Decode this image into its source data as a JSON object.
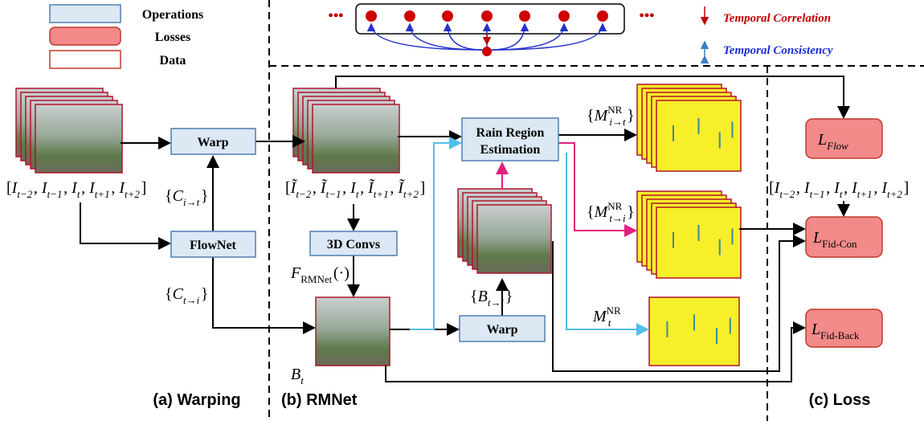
{
  "legend": {
    "operations": "Operations",
    "losses": "Losses",
    "data": "Data"
  },
  "temporal": {
    "correlation": "Temporal Correlation",
    "consistency": "Temporal Consistency",
    "ellipsis_left": "•••",
    "ellipsis_right": "•••"
  },
  "nodes": {
    "warp_a": "Warp",
    "flownet": "FlowNet",
    "convs": "3D Convs",
    "rain": [
      "Rain Region",
      "Estimation"
    ],
    "warp_b": "Warp"
  },
  "math": {
    "frames_a": [
      "[",
      "I",
      {
        "sub": "t−2"
      },
      ", ",
      "I",
      {
        "sub": "t−1"
      },
      ", ",
      "I",
      {
        "sub": "t"
      },
      ", ",
      "I",
      {
        "sub": "t+1"
      },
      ", ",
      "I",
      {
        "sub": "t+2"
      },
      "]"
    ],
    "frames_b": [
      "[",
      "Ĩ",
      {
        "sub": "t−2"
      },
      ", ",
      "Ĩ",
      {
        "sub": "t−1"
      },
      ", ",
      "I",
      {
        "sub": "t"
      },
      ", ",
      "Ĩ",
      {
        "sub": "t+1"
      },
      ", ",
      "Ĩ",
      {
        "sub": "t+2"
      },
      "]"
    ],
    "frames_c": [
      "[",
      "I",
      {
        "sub": "t−2"
      },
      ", ",
      "I",
      {
        "sub": "t−1"
      },
      ", ",
      "I",
      {
        "sub": "t"
      },
      ", ",
      "I",
      {
        "sub": "t+1"
      },
      ", ",
      "I",
      {
        "sub": "t+2"
      },
      "]"
    ],
    "flow_it": [
      "{",
      "C",
      {
        "sub": "i→t"
      },
      "}"
    ],
    "flow_ti": [
      "{",
      "C",
      {
        "sub": "t→i"
      },
      "}"
    ],
    "frmnet": [
      "F",
      {
        "sub": "RMNet"
      },
      "(·)"
    ],
    "bt": [
      "B",
      {
        "sub": "t"
      }
    ],
    "bti": [
      "{",
      "B",
      {
        "sub": "t→i"
      },
      "}"
    ],
    "m_it": [
      "{",
      "M",
      {
        "sup": "NR",
        "sub": "i→t"
      },
      "}"
    ],
    "m_ti": [
      "{",
      "M",
      {
        "sup": "NR",
        "sub": "t→i"
      },
      "}"
    ],
    "m_t": [
      "M",
      {
        "sup": "NR",
        "sub": "t"
      }
    ],
    "l_flow": [
      "L",
      {
        "sub": "Flow"
      }
    ],
    "l_fidcon": [
      "L",
      {
        "sub": "Fid-Con"
      }
    ],
    "l_fidback": [
      "L",
      {
        "sub": "Fid-Back"
      }
    ]
  },
  "sections": {
    "a": "(a) Warping",
    "b": "(b) RMNet",
    "c": "(c) Loss"
  }
}
